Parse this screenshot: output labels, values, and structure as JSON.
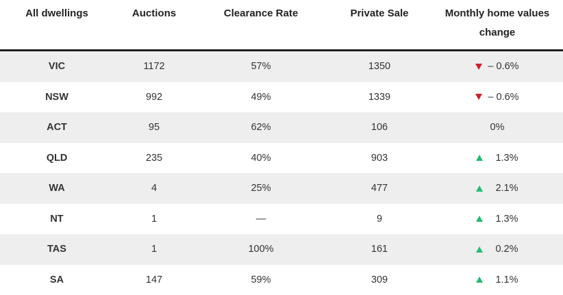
{
  "table": {
    "headers": [
      "All dwellings",
      "Auctions",
      "Clearance Rate",
      "Private Sale",
      "Monthly home values change"
    ],
    "rows": [
      {
        "state": "VIC",
        "auctions": "1172",
        "clearance": "57%",
        "private": "1350",
        "change": "– 0.6%",
        "trend": "down"
      },
      {
        "state": "NSW",
        "auctions": "992",
        "clearance": "49%",
        "private": "1339",
        "change": "– 0.6%",
        "trend": "down"
      },
      {
        "state": "ACT",
        "auctions": "95",
        "clearance": "62%",
        "private": "106",
        "change": "0%",
        "trend": "none"
      },
      {
        "state": "QLD",
        "auctions": "235",
        "clearance": "40%",
        "private": "903",
        "change": "1.3%",
        "trend": "up"
      },
      {
        "state": "WA",
        "auctions": "4",
        "clearance": "25%",
        "private": "477",
        "change": "2.1%",
        "trend": "up"
      },
      {
        "state": "NT",
        "auctions": "1",
        "clearance": "—",
        "private": "9",
        "change": "1.3%",
        "trend": "up"
      },
      {
        "state": "TAS",
        "auctions": "1",
        "clearance": "100%",
        "private": "161",
        "change": "0.2%",
        "trend": "up"
      },
      {
        "state": "SA",
        "auctions": "147",
        "clearance": "59%",
        "private": "309",
        "change": "1.1%",
        "trend": "up"
      }
    ]
  },
  "colors": {
    "down": "#cc2127",
    "up": "#21bb73",
    "stripe": "#eeeeee",
    "header_rule": "#1f1f1f"
  },
  "icons": {
    "down": "triangle-down-icon",
    "up": "triangle-up-icon"
  }
}
